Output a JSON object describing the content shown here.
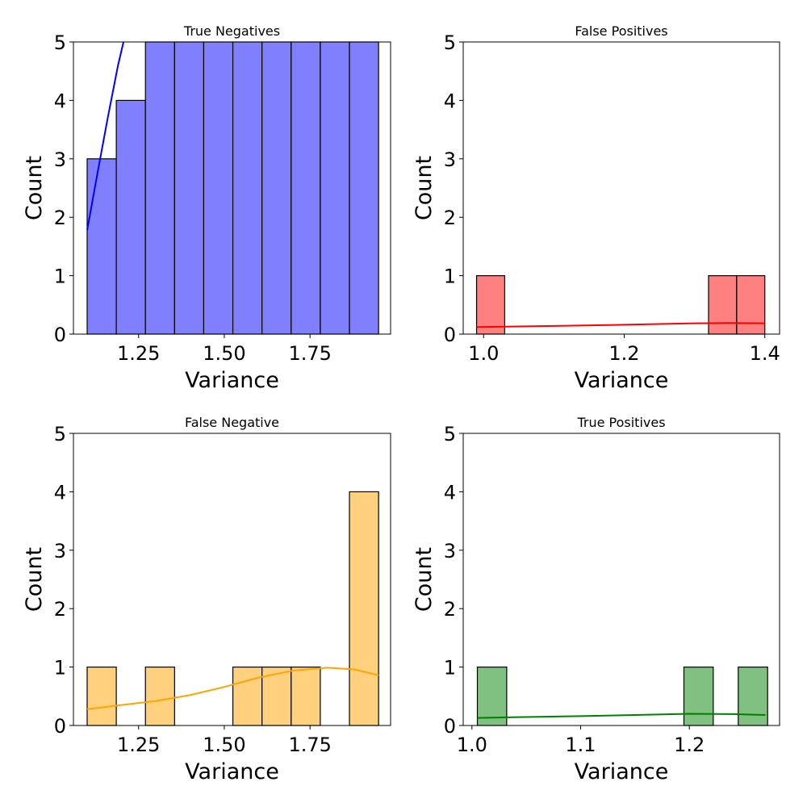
{
  "chart_data": [
    {
      "type": "bar",
      "title": "True Negatives",
      "xlabel": "Variance",
      "ylabel": "Count",
      "color": "#0000ff",
      "bar_color": "#8080ff",
      "xlim": [
        1.06,
        1.985
      ],
      "ylim": [
        0,
        5
      ],
      "xticks": [
        1.25,
        1.5,
        1.75
      ],
      "xtick_labels": [
        "1.25",
        "1.50",
        "1.75"
      ],
      "yticks": [
        0,
        1,
        2,
        3,
        4,
        5
      ],
      "ytick_labels": [
        "0",
        "1",
        "2",
        "3",
        "4",
        "5"
      ],
      "bins": [
        {
          "x0": 1.1,
          "x1": 1.185,
          "count": 3
        },
        {
          "x0": 1.185,
          "x1": 1.27,
          "count": 4
        },
        {
          "x0": 1.27,
          "x1": 1.355,
          "count": 5
        },
        {
          "x0": 1.355,
          "x1": 1.44,
          "count": 5
        },
        {
          "x0": 1.44,
          "x1": 1.525,
          "count": 5
        },
        {
          "x0": 1.525,
          "x1": 1.61,
          "count": 5
        },
        {
          "x0": 1.61,
          "x1": 1.695,
          "count": 5
        },
        {
          "x0": 1.695,
          "x1": 1.78,
          "count": 5
        },
        {
          "x0": 1.78,
          "x1": 1.865,
          "count": 5
        },
        {
          "x0": 1.865,
          "x1": 1.95,
          "count": 5
        }
      ],
      "kde": {
        "x": [
          1.1,
          1.13,
          1.16,
          1.19,
          1.21
        ],
        "y": [
          1.78,
          2.75,
          3.7,
          4.6,
          5.1
        ]
      }
    },
    {
      "type": "bar",
      "title": "False Positives",
      "xlabel": "Variance",
      "ylabel": "Count",
      "color": "#ff0000",
      "bar_color": "#ff8080",
      "xlim": [
        0.971,
        1.421
      ],
      "ylim": [
        0,
        5
      ],
      "xticks": [
        1.0,
        1.2,
        1.4
      ],
      "xtick_labels": [
        "1.0",
        "1.2",
        "1.4"
      ],
      "yticks": [
        0,
        1,
        2,
        3,
        4,
        5
      ],
      "ytick_labels": [
        "0",
        "1",
        "2",
        "3",
        "4",
        "5"
      ],
      "bins": [
        {
          "x0": 0.99,
          "x1": 1.03,
          "count": 1
        },
        {
          "x0": 1.32,
          "x1": 1.36,
          "count": 1
        },
        {
          "x0": 1.36,
          "x1": 1.4,
          "count": 1
        }
      ],
      "kde": {
        "x": [
          0.99,
          1.1,
          1.2,
          1.3,
          1.35,
          1.4
        ],
        "y": [
          0.12,
          0.14,
          0.16,
          0.185,
          0.19,
          0.185
        ]
      }
    },
    {
      "type": "bar",
      "title": "False Negative",
      "xlabel": "Variance",
      "ylabel": "Count",
      "color": "#ffa500",
      "bar_color": "#ffd17f",
      "xlim": [
        1.06,
        1.985
      ],
      "ylim": [
        0,
        5
      ],
      "xticks": [
        1.25,
        1.5,
        1.75
      ],
      "xtick_labels": [
        "1.25",
        "1.50",
        "1.75"
      ],
      "yticks": [
        0,
        1,
        2,
        3,
        4,
        5
      ],
      "ytick_labels": [
        "0",
        "1",
        "2",
        "3",
        "4",
        "5"
      ],
      "bins": [
        {
          "x0": 1.1,
          "x1": 1.185,
          "count": 1
        },
        {
          "x0": 1.27,
          "x1": 1.355,
          "count": 1
        },
        {
          "x0": 1.525,
          "x1": 1.61,
          "count": 1
        },
        {
          "x0": 1.61,
          "x1": 1.695,
          "count": 1
        },
        {
          "x0": 1.695,
          "x1": 1.78,
          "count": 1
        },
        {
          "x0": 1.865,
          "x1": 1.95,
          "count": 4
        }
      ],
      "kde": {
        "x": [
          1.1,
          1.2,
          1.3,
          1.4,
          1.5,
          1.6,
          1.7,
          1.8,
          1.88,
          1.95
        ],
        "y": [
          0.28,
          0.35,
          0.42,
          0.52,
          0.66,
          0.82,
          0.94,
          0.99,
          0.96,
          0.86
        ]
      }
    },
    {
      "type": "bar",
      "title": "True Positives",
      "xlabel": "Variance",
      "ylabel": "Count",
      "color": "#008000",
      "bar_color": "#80c080",
      "xlim": [
        0.992,
        1.283
      ],
      "ylim": [
        0,
        5
      ],
      "xticks": [
        1.0,
        1.1,
        1.2
      ],
      "xtick_labels": [
        "1.0",
        "1.1",
        "1.2"
      ],
      "yticks": [
        0,
        1,
        2,
        3,
        4,
        5
      ],
      "ytick_labels": [
        "0",
        "1",
        "2",
        "3",
        "4",
        "5"
      ],
      "bins": [
        {
          "x0": 1.005,
          "x1": 1.032,
          "count": 1
        },
        {
          "x0": 1.195,
          "x1": 1.222,
          "count": 1
        },
        {
          "x0": 1.245,
          "x1": 1.272,
          "count": 1
        }
      ],
      "kde": {
        "x": [
          1.005,
          1.05,
          1.1,
          1.15,
          1.2,
          1.24,
          1.27
        ],
        "y": [
          0.13,
          0.145,
          0.16,
          0.18,
          0.2,
          0.195,
          0.18
        ]
      }
    }
  ]
}
